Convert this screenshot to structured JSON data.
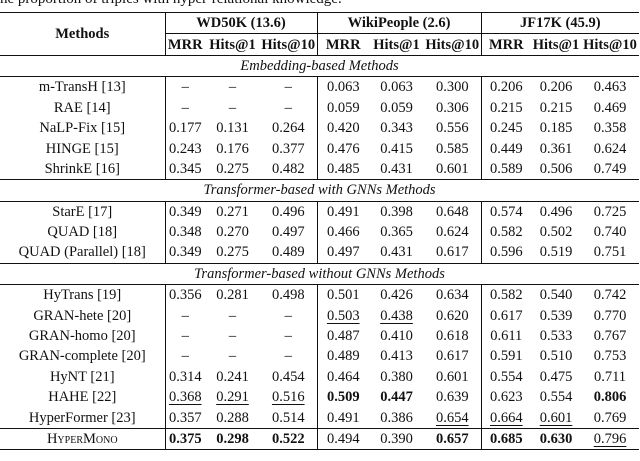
{
  "caption": "he proportion of triples with hyper-relational knowledge.",
  "table": {
    "methods_header": "Methods",
    "groups": [
      {
        "name": "WD50K (13.6)",
        "metrics": [
          "MRR",
          "Hits@1",
          "Hits@10"
        ]
      },
      {
        "name": "WikiPeople (2.6)",
        "metrics": [
          "MRR",
          "Hits@1",
          "Hits@10"
        ]
      },
      {
        "name": "JF17K (45.9)",
        "metrics": [
          "MRR",
          "Hits@1",
          "Hits@10"
        ]
      }
    ],
    "sections": [
      {
        "title": "Embedding-based Methods",
        "rows": [
          {
            "method": "m-TransH [13]",
            "cells": [
              "–",
              "–",
              "–",
              "0.063",
              "0.063",
              "0.300",
              "0.206",
              "0.206",
              "0.463"
            ]
          },
          {
            "method": "RAE [14]",
            "cells": [
              "–",
              "–",
              "–",
              "0.059",
              "0.059",
              "0.306",
              "0.215",
              "0.215",
              "0.469"
            ]
          },
          {
            "method": "NaLP-Fix [15]",
            "cells": [
              "0.177",
              "0.131",
              "0.264",
              "0.420",
              "0.343",
              "0.556",
              "0.245",
              "0.185",
              "0.358"
            ]
          },
          {
            "method": "HINGE [15]",
            "cells": [
              "0.243",
              "0.176",
              "0.377",
              "0.476",
              "0.415",
              "0.585",
              "0.449",
              "0.361",
              "0.624"
            ]
          },
          {
            "method": "ShrinkE [16]",
            "cells": [
              "0.345",
              "0.275",
              "0.482",
              "0.485",
              "0.431",
              "0.601",
              "0.589",
              "0.506",
              "0.749"
            ]
          }
        ]
      },
      {
        "title": "Transformer-based with GNNs Methods",
        "rows": [
          {
            "method": "StarE [17]",
            "cells": [
              "0.349",
              "0.271",
              "0.496",
              "0.491",
              "0.398",
              "0.648",
              "0.574",
              "0.496",
              "0.725"
            ]
          },
          {
            "method": "QUAD [18]",
            "cells": [
              "0.348",
              "0.270",
              "0.497",
              "0.466",
              "0.365",
              "0.624",
              "0.582",
              "0.502",
              "0.740"
            ]
          },
          {
            "method": "QUAD (Parallel) [18]",
            "cells": [
              "0.349",
              "0.275",
              "0.489",
              "0.497",
              "0.431",
              "0.617",
              "0.596",
              "0.519",
              "0.751"
            ]
          }
        ]
      },
      {
        "title": "Transformer-based without GNNs Methods",
        "rows": [
          {
            "method": "HyTrans [19]",
            "cells": [
              "0.356",
              "0.281",
              "0.498",
              "0.501",
              "0.426",
              "0.634",
              "0.582",
              "0.540",
              "0.742"
            ]
          },
          {
            "method": "GRAN-hete [20]",
            "cells": [
              "–",
              "–",
              "–",
              {
                "text": "0.503",
                "style": "underline"
              },
              {
                "text": "0.438",
                "style": "underline"
              },
              "0.620",
              "0.617",
              "0.539",
              "0.770"
            ]
          },
          {
            "method": "GRAN-homo [20]",
            "cells": [
              "–",
              "–",
              "–",
              "0.487",
              "0.410",
              "0.618",
              "0.611",
              "0.533",
              "0.767"
            ]
          },
          {
            "method": "GRAN-complete [20]",
            "cells": [
              "–",
              "–",
              "–",
              "0.489",
              "0.413",
              "0.617",
              "0.591",
              "0.510",
              "0.753"
            ]
          },
          {
            "method": "HyNT [21]",
            "cells": [
              "0.314",
              "0.241",
              "0.454",
              "0.464",
              "0.380",
              "0.601",
              "0.554",
              "0.475",
              "0.711"
            ]
          },
          {
            "method": "HAHE [22]",
            "cells": [
              {
                "text": "0.368",
                "style": "underline"
              },
              {
                "text": "0.291",
                "style": "underline"
              },
              {
                "text": "0.516",
                "style": "underline"
              },
              {
                "text": "0.509",
                "style": "bold"
              },
              {
                "text": "0.447",
                "style": "bold"
              },
              "0.639",
              "0.623",
              "0.554",
              {
                "text": "0.806",
                "style": "bold"
              }
            ]
          },
          {
            "method": "HyperFormer [23]",
            "cells": [
              "0.357",
              "0.288",
              "0.514",
              "0.491",
              "0.386",
              {
                "text": "0.654",
                "style": "underline"
              },
              {
                "text": "0.664",
                "style": "underline"
              },
              {
                "text": "0.601",
                "style": "underline"
              },
              "0.769"
            ]
          }
        ]
      }
    ],
    "final_row": {
      "method": "HyperMono",
      "method_style": "small-caps",
      "cells": [
        {
          "text": "0.375",
          "style": "bold"
        },
        {
          "text": "0.298",
          "style": "bold"
        },
        {
          "text": "0.522",
          "style": "bold"
        },
        "0.494",
        "0.390",
        {
          "text": "0.657",
          "style": "bold"
        },
        {
          "text": "0.685",
          "style": "bold"
        },
        {
          "text": "0.630",
          "style": "bold"
        },
        {
          "text": "0.796",
          "style": "underline"
        }
      ]
    }
  }
}
